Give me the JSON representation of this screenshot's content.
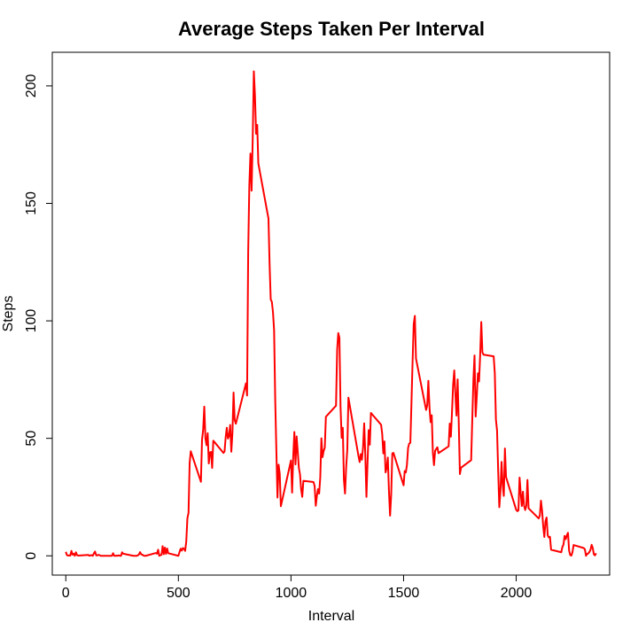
{
  "chart_data": {
    "type": "line",
    "title": "Average Steps Taken Per Interval",
    "xlabel": "Interval",
    "ylabel": "Steps",
    "xlim": [
      -60,
      2415
    ],
    "ylim": [
      -8.2,
      214.3
    ],
    "xticks": [
      0,
      500,
      1000,
      1500,
      2000
    ],
    "yticks": [
      0,
      50,
      100,
      150,
      200
    ],
    "line_color": "#ff0000",
    "grid": false,
    "series": [
      {
        "values": [
          [
            0,
            1.7
          ],
          [
            5,
            0.3
          ],
          [
            10,
            0.1
          ],
          [
            15,
            0.2
          ],
          [
            20,
            0.1
          ],
          [
            25,
            2.1
          ],
          [
            30,
            0.5
          ],
          [
            35,
            0.9
          ],
          [
            40,
            0
          ],
          [
            45,
            1.5
          ],
          [
            50,
            0.3
          ],
          [
            55,
            0.1
          ],
          [
            100,
            0.4
          ],
          [
            105,
            0
          ],
          [
            110,
            0.2
          ],
          [
            115,
            0.3
          ],
          [
            120,
            0
          ],
          [
            125,
            1.1
          ],
          [
            130,
            1.8
          ],
          [
            135,
            0.2
          ],
          [
            140,
            0.2
          ],
          [
            145,
            0.4
          ],
          [
            150,
            0.3
          ],
          [
            155,
            0
          ],
          [
            200,
            0
          ],
          [
            205,
            0
          ],
          [
            210,
            1.1
          ],
          [
            215,
            0
          ],
          [
            220,
            0
          ],
          [
            225,
            0.1
          ],
          [
            230,
            0
          ],
          [
            235,
            0.2
          ],
          [
            240,
            0
          ],
          [
            245,
            0
          ],
          [
            250,
            1.5
          ],
          [
            255,
            0.9
          ],
          [
            300,
            0
          ],
          [
            305,
            0
          ],
          [
            310,
            0
          ],
          [
            315,
            0
          ],
          [
            320,
            0.2
          ],
          [
            325,
            0.6
          ],
          [
            330,
            1.6
          ],
          [
            335,
            0.6
          ],
          [
            340,
            0.5
          ],
          [
            345,
            0.1
          ],
          [
            350,
            0
          ],
          [
            355,
            0
          ],
          [
            400,
            1.2
          ],
          [
            405,
            0.9
          ],
          [
            410,
            2.6
          ],
          [
            415,
            0
          ],
          [
            420,
            0.3
          ],
          [
            425,
            0.4
          ],
          [
            430,
            4.1
          ],
          [
            435,
            0.7
          ],
          [
            440,
            3.5
          ],
          [
            445,
            0.8
          ],
          [
            450,
            3.1
          ],
          [
            455,
            1.1
          ],
          [
            500,
            0
          ],
          [
            505,
            1.6
          ],
          [
            510,
            3
          ],
          [
            515,
            2.2
          ],
          [
            520,
            3.3
          ],
          [
            525,
            3
          ],
          [
            530,
            2.1
          ],
          [
            535,
            6.1
          ],
          [
            540,
            16
          ],
          [
            545,
            18.3
          ],
          [
            550,
            39.5
          ],
          [
            555,
            44.5
          ],
          [
            600,
            31.5
          ],
          [
            605,
            49.3
          ],
          [
            610,
            53.8
          ],
          [
            615,
            63.5
          ],
          [
            620,
            50
          ],
          [
            625,
            47.1
          ],
          [
            630,
            52.2
          ],
          [
            635,
            39.3
          ],
          [
            640,
            44
          ],
          [
            645,
            44.2
          ],
          [
            650,
            37.4
          ],
          [
            655,
            49
          ],
          [
            700,
            43.8
          ],
          [
            705,
            44.4
          ],
          [
            710,
            50.5
          ],
          [
            715,
            54.5
          ],
          [
            720,
            49.9
          ],
          [
            725,
            51
          ],
          [
            730,
            55.7
          ],
          [
            735,
            44.3
          ],
          [
            740,
            52.3
          ],
          [
            745,
            69.5
          ],
          [
            750,
            57.8
          ],
          [
            755,
            56.2
          ],
          [
            800,
            73.4
          ],
          [
            805,
            68.2
          ],
          [
            810,
            129.4
          ],
          [
            815,
            157.5
          ],
          [
            820,
            171.2
          ],
          [
            825,
            155.4
          ],
          [
            830,
            177.3
          ],
          [
            835,
            206.2
          ],
          [
            840,
            195.9
          ],
          [
            845,
            179.6
          ],
          [
            850,
            183.4
          ],
          [
            855,
            167
          ],
          [
            900,
            143.5
          ],
          [
            905,
            124
          ],
          [
            910,
            109.1
          ],
          [
            915,
            108.1
          ],
          [
            920,
            103.7
          ],
          [
            925,
            96
          ],
          [
            930,
            66.2
          ],
          [
            935,
            45.2
          ],
          [
            940,
            24.8
          ],
          [
            945,
            38.8
          ],
          [
            950,
            35
          ],
          [
            955,
            21.1
          ],
          [
            1000,
            40.6
          ],
          [
            1005,
            26.9
          ],
          [
            1010,
            42.4
          ],
          [
            1015,
            52.7
          ],
          [
            1020,
            38.9
          ],
          [
            1025,
            50.8
          ],
          [
            1030,
            44.3
          ],
          [
            1035,
            37.4
          ],
          [
            1040,
            34.7
          ],
          [
            1045,
            28.3
          ],
          [
            1050,
            25.1
          ],
          [
            1055,
            31.9
          ],
          [
            1100,
            31.4
          ],
          [
            1105,
            29.7
          ],
          [
            1110,
            21.3
          ],
          [
            1115,
            25.5
          ],
          [
            1120,
            28.4
          ],
          [
            1125,
            26.5
          ],
          [
            1130,
            33.4
          ],
          [
            1135,
            50
          ],
          [
            1140,
            42
          ],
          [
            1145,
            44.6
          ],
          [
            1150,
            46
          ],
          [
            1155,
            59.2
          ],
          [
            1200,
            63.9
          ],
          [
            1205,
            87.7
          ],
          [
            1210,
            94.8
          ],
          [
            1215,
            92.8
          ],
          [
            1220,
            63.4
          ],
          [
            1225,
            50.2
          ],
          [
            1230,
            54.5
          ],
          [
            1235,
            32.4
          ],
          [
            1240,
            26.5
          ],
          [
            1245,
            37.7
          ],
          [
            1250,
            45.1
          ],
          [
            1255,
            67.3
          ],
          [
            1300,
            42.3
          ],
          [
            1305,
            39.9
          ],
          [
            1310,
            43.3
          ],
          [
            1315,
            40.9
          ],
          [
            1320,
            46.2
          ],
          [
            1325,
            56.4
          ],
          [
            1330,
            42.8
          ],
          [
            1335,
            25.1
          ],
          [
            1340,
            39.9
          ],
          [
            1345,
            53.5
          ],
          [
            1350,
            47.3
          ],
          [
            1355,
            60.8
          ],
          [
            1400,
            55.8
          ],
          [
            1405,
            51.9
          ],
          [
            1410,
            43.6
          ],
          [
            1415,
            48.7
          ],
          [
            1420,
            35.5
          ],
          [
            1425,
            37.5
          ],
          [
            1430,
            41.8
          ],
          [
            1435,
            27.5
          ],
          [
            1440,
            17.1
          ],
          [
            1445,
            26.2
          ],
          [
            1450,
            43.6
          ],
          [
            1455,
            43.8
          ],
          [
            1500,
            30
          ],
          [
            1505,
            36.1
          ],
          [
            1510,
            35.5
          ],
          [
            1515,
            38.8
          ],
          [
            1520,
            45.9
          ],
          [
            1525,
            47.8
          ],
          [
            1530,
            48.1
          ],
          [
            1535,
            65.3
          ],
          [
            1540,
            82.9
          ],
          [
            1545,
            98.7
          ],
          [
            1550,
            102.1
          ],
          [
            1555,
            84
          ],
          [
            1600,
            62.1
          ],
          [
            1605,
            64.1
          ],
          [
            1610,
            74.5
          ],
          [
            1615,
            63.2
          ],
          [
            1620,
            56.9
          ],
          [
            1625,
            59.8
          ],
          [
            1630,
            43.9
          ],
          [
            1635,
            38.6
          ],
          [
            1640,
            44.7
          ],
          [
            1645,
            45.5
          ],
          [
            1650,
            46.2
          ],
          [
            1655,
            43.7
          ],
          [
            1700,
            46.6
          ],
          [
            1705,
            56.3
          ],
          [
            1710,
            50.7
          ],
          [
            1715,
            61.2
          ],
          [
            1720,
            72.7
          ],
          [
            1725,
            78.9
          ],
          [
            1730,
            68.9
          ],
          [
            1735,
            59.7
          ],
          [
            1740,
            75.1
          ],
          [
            1745,
            56.5
          ],
          [
            1750,
            34.8
          ],
          [
            1755,
            37.5
          ],
          [
            1800,
            40.7
          ],
          [
            1805,
            58
          ],
          [
            1810,
            74.7
          ],
          [
            1815,
            85.3
          ],
          [
            1820,
            59.3
          ],
          [
            1825,
            67.8
          ],
          [
            1830,
            77.7
          ],
          [
            1835,
            74.2
          ],
          [
            1840,
            85.3
          ],
          [
            1845,
            99.5
          ],
          [
            1850,
            86.6
          ],
          [
            1855,
            85.6
          ],
          [
            1900,
            84.9
          ],
          [
            1905,
            77.8
          ],
          [
            1910,
            58
          ],
          [
            1915,
            53.4
          ],
          [
            1920,
            36.3
          ],
          [
            1925,
            20.7
          ],
          [
            1930,
            27.4
          ],
          [
            1935,
            40
          ],
          [
            1940,
            30.2
          ],
          [
            1945,
            25.5
          ],
          [
            1950,
            45.7
          ],
          [
            1955,
            33.5
          ],
          [
            2000,
            19.6
          ],
          [
            2005,
            19
          ],
          [
            2010,
            19.3
          ],
          [
            2015,
            33.3
          ],
          [
            2020,
            26.8
          ],
          [
            2025,
            21.2
          ],
          [
            2030,
            27.3
          ],
          [
            2035,
            21.3
          ],
          [
            2040,
            19.5
          ],
          [
            2045,
            21.3
          ],
          [
            2050,
            32.3
          ],
          [
            2055,
            20.2
          ],
          [
            2100,
            15.9
          ],
          [
            2105,
            17.2
          ],
          [
            2110,
            23.5
          ],
          [
            2115,
            19.2
          ],
          [
            2120,
            12.5
          ],
          [
            2125,
            8
          ],
          [
            2130,
            14.7
          ],
          [
            2135,
            16.3
          ],
          [
            2140,
            8.7
          ],
          [
            2145,
            7.8
          ],
          [
            2150,
            8.1
          ],
          [
            2155,
            2.6
          ],
          [
            2200,
            1.5
          ],
          [
            2205,
            3.7
          ],
          [
            2210,
            4.8
          ],
          [
            2215,
            8.5
          ],
          [
            2220,
            7.1
          ],
          [
            2225,
            8.7
          ],
          [
            2230,
            9.8
          ],
          [
            2235,
            2.2
          ],
          [
            2240,
            0.3
          ],
          [
            2245,
            0.1
          ],
          [
            2250,
            1.6
          ],
          [
            2255,
            4.6
          ],
          [
            2300,
            3.3
          ],
          [
            2305,
            2.8
          ],
          [
            2310,
            0
          ],
          [
            2315,
            0.8
          ],
          [
            2320,
            1
          ],
          [
            2325,
            1.6
          ],
          [
            2330,
            2.6
          ],
          [
            2335,
            4.7
          ],
          [
            2340,
            3.3
          ],
          [
            2345,
            0.6
          ],
          [
            2350,
            0.2
          ],
          [
            2355,
            1.1
          ]
        ]
      }
    ]
  }
}
